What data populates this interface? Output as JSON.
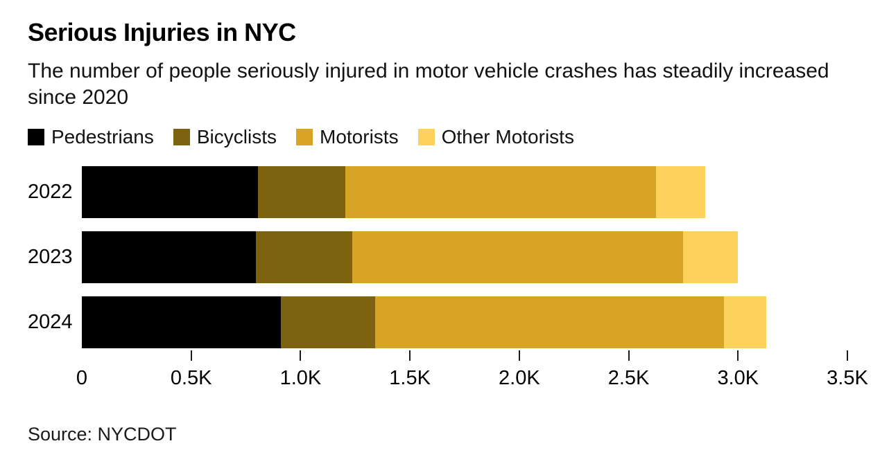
{
  "title": "Serious Injuries in NYC",
  "subtitle": "The number of people seriously injured in motor vehicle crashes has steadily increased since 2020",
  "source": "Source: NYCDOT",
  "colors": {
    "pedestrians": "#000000",
    "bicyclists": "#7d6210",
    "motorists": "#d7a426",
    "other_motorists": "#fcd15c",
    "tick": "#1a1a1a",
    "background": "#ffffff"
  },
  "chart_data": {
    "type": "bar",
    "orientation": "horizontal",
    "stacked": true,
    "grid": false,
    "legend_position": "top",
    "categories": [
      "2022",
      "2023",
      "2024"
    ],
    "series": [
      {
        "name": "Pedestrians",
        "color": "#000000",
        "values": [
          805,
          795,
          910
        ]
      },
      {
        "name": "Bicyclists",
        "color": "#7d6210",
        "values": [
          400,
          440,
          430
        ]
      },
      {
        "name": "Motorists",
        "color": "#d7a426",
        "values": [
          1420,
          1515,
          1595
        ]
      },
      {
        "name": "Other Motorists",
        "color": "#fcd15c",
        "values": [
          225,
          250,
          195
        ]
      }
    ],
    "totals": [
      2850,
      3000,
      3130
    ],
    "xlim": [
      0,
      3500
    ],
    "x_tick_values": [
      0,
      500,
      1000,
      1500,
      2000,
      2500,
      3000,
      3500
    ],
    "x_tick_labels": [
      "0",
      "0.5K",
      "1.0K",
      "1.5K",
      "2.0K",
      "2.5K",
      "3.0K",
      "3.5K"
    ],
    "title": "Serious Injuries in NYC",
    "xlabel": "",
    "ylabel": ""
  }
}
